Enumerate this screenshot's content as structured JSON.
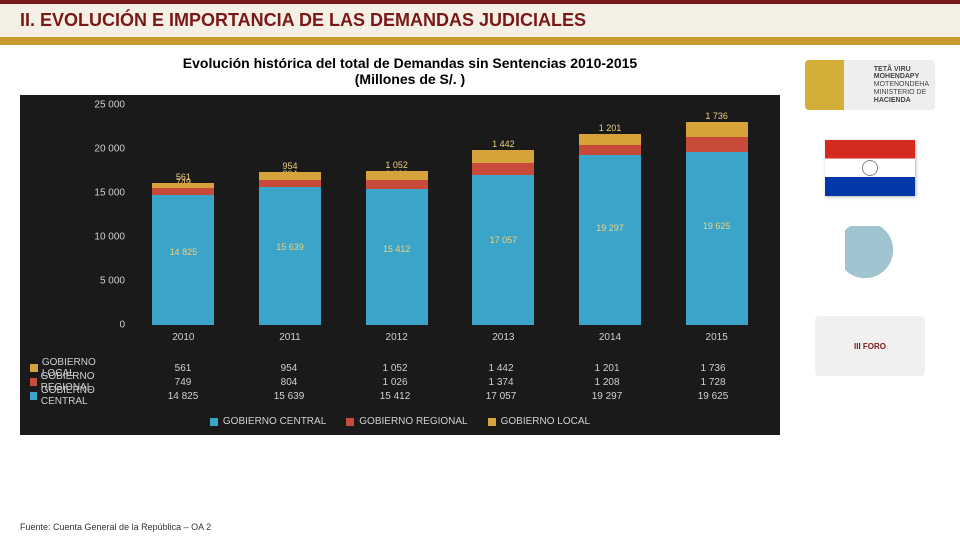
{
  "header": {
    "title": "II. EVOLUCIÓN E IMPORTANCIA DE LAS DEMANDAS JUDICIALES"
  },
  "chart": {
    "type": "stacked-bar",
    "title": "Evolución histórica del total de Demandas sin Sentencias 2010-2015",
    "subtitle": "(Millones de S/. )",
    "background_color": "#1a1a1a",
    "text_color": "#d0d0d0",
    "label_color": "#f0d080",
    "ylim": [
      0,
      25000
    ],
    "yticks": [
      0,
      5000,
      10000,
      15000,
      20000,
      25000
    ],
    "ytick_labels": [
      "0",
      "5 000",
      "10 000",
      "15 000",
      "20 000",
      "25 000"
    ],
    "categories": [
      "2010",
      "2011",
      "2012",
      "2013",
      "2014",
      "2015"
    ],
    "series": [
      {
        "key": "central",
        "name": "GOBIERNO CENTRAL",
        "color": "#3aa5c9",
        "values": [
          14825,
          15639,
          15412,
          17057,
          19297,
          19625
        ],
        "labels": [
          "14 825",
          "15 639",
          "15 412",
          "17 057",
          "19 297",
          "19 625"
        ]
      },
      {
        "key": "regional",
        "name": "GOBIERNO REGIONAL",
        "color": "#c74a3a",
        "values": [
          749,
          804,
          1026,
          1374,
          1208,
          1728
        ],
        "labels": [
          "749",
          "804",
          "1 026",
          "1 374",
          "1 208",
          "1 728"
        ]
      },
      {
        "key": "local",
        "name": "GOBIERNO LOCAL",
        "color": "#d6a23a",
        "values": [
          561,
          954,
          1052,
          1442,
          1201,
          1736
        ],
        "labels": [
          "561",
          "954",
          "1 052",
          "1 442",
          "1 201",
          "1 736"
        ]
      }
    ],
    "table_row_order": [
      "local",
      "regional",
      "central"
    ],
    "legend_order": [
      "central",
      "regional",
      "local"
    ]
  },
  "emblem": {
    "line1": "TETÃ VIRU",
    "line2": "MOHENDAPY",
    "line3": "MOTENONDEHA",
    "line4": "MINISTERIO DE",
    "line5": "HACIENDA"
  },
  "badge": {
    "text": "III FORO"
  },
  "footer": {
    "text": "Fuente: Cuenta General de la República – OA 2"
  }
}
